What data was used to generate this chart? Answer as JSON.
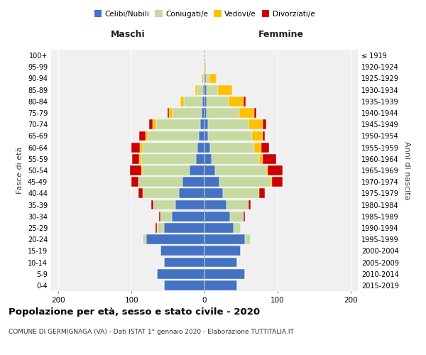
{
  "age_groups": [
    "0-4",
    "5-9",
    "10-14",
    "15-19",
    "20-24",
    "25-29",
    "30-34",
    "35-39",
    "40-44",
    "45-49",
    "50-54",
    "55-59",
    "60-64",
    "65-69",
    "70-74",
    "75-79",
    "80-84",
    "85-89",
    "90-94",
    "95-99",
    "100+"
  ],
  "birth_years": [
    "2015-2019",
    "2010-2014",
    "2005-2009",
    "2000-2004",
    "1995-1999",
    "1990-1994",
    "1985-1989",
    "1980-1984",
    "1975-1979",
    "1970-1974",
    "1965-1969",
    "1960-1964",
    "1955-1959",
    "1950-1954",
    "1945-1949",
    "1940-1944",
    "1935-1939",
    "1930-1934",
    "1925-1929",
    "1920-1924",
    "≤ 1919"
  ],
  "maschi": {
    "celibi": [
      55,
      65,
      55,
      60,
      80,
      55,
      45,
      40,
      35,
      30,
      20,
      12,
      10,
      8,
      6,
      4,
      3,
      2,
      0,
      0,
      0
    ],
    "coniugati": [
      0,
      0,
      0,
      0,
      5,
      10,
      15,
      30,
      50,
      60,
      65,
      75,
      75,
      70,
      60,
      40,
      25,
      8,
      2,
      0,
      0
    ],
    "vedovi": [
      0,
      0,
      0,
      0,
      0,
      0,
      0,
      0,
      0,
      0,
      2,
      2,
      3,
      3,
      5,
      5,
      5,
      3,
      2,
      0,
      0
    ],
    "divorziati": [
      0,
      0,
      0,
      0,
      0,
      2,
      2,
      3,
      5,
      10,
      15,
      10,
      12,
      8,
      5,
      2,
      0,
      0,
      0,
      0,
      0
    ]
  },
  "femmine": {
    "nubili": [
      45,
      55,
      45,
      50,
      55,
      40,
      35,
      30,
      25,
      20,
      15,
      10,
      8,
      5,
      5,
      3,
      3,
      3,
      2,
      0,
      0
    ],
    "coniugate": [
      0,
      0,
      0,
      0,
      8,
      10,
      18,
      30,
      50,
      70,
      70,
      65,
      60,
      60,
      55,
      45,
      30,
      15,
      5,
      0,
      0
    ],
    "vedove": [
      0,
      0,
      0,
      0,
      0,
      0,
      0,
      0,
      0,
      2,
      2,
      5,
      10,
      15,
      20,
      20,
      20,
      20,
      10,
      2,
      0
    ],
    "divorziate": [
      0,
      0,
      0,
      0,
      0,
      0,
      2,
      3,
      8,
      15,
      20,
      18,
      10,
      3,
      5,
      3,
      3,
      0,
      0,
      0,
      0
    ]
  },
  "colors": {
    "celibi": "#4472c4",
    "coniugati": "#c5d9a0",
    "vedovi": "#ffc000",
    "divorziati": "#cc0000"
  },
  "xlim": 210,
  "title": "Popolazione per età, sesso e stato civile - 2020",
  "subtitle": "COMUNE DI GERMIGNAGA (VA) - Dati ISTAT 1° gennaio 2020 - Elaborazione TUTTITALIA.IT",
  "ylabel_left": "Fasce di età",
  "ylabel_right": "Anni di nascita",
  "xlabel_maschi": "Maschi",
  "xlabel_femmine": "Femmine",
  "bg_color": "#f0f0f0"
}
